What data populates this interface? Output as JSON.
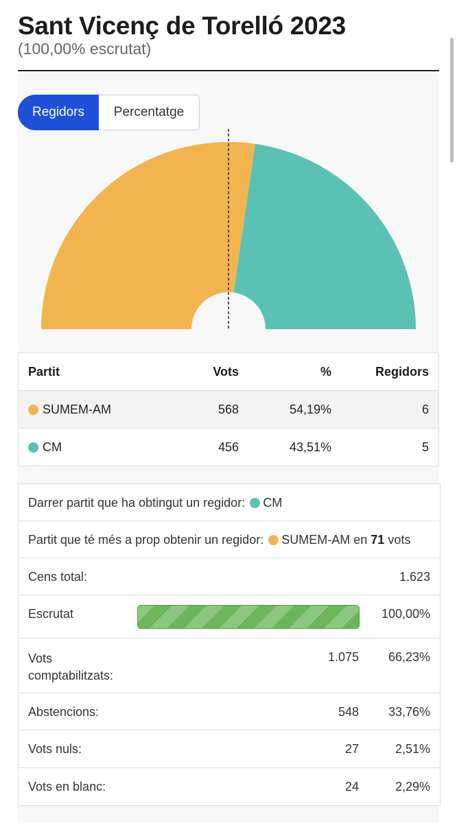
{
  "header": {
    "title": "Sant Vicenç de Torelló 2023",
    "subtitle": "(100,00% escrutat)"
  },
  "toggle": {
    "active_label": "Regidors",
    "inactive_label": "Percentatge"
  },
  "chart_data": {
    "type": "pie",
    "shape": "semicircle",
    "categories": [
      "SUMEM-AM",
      "CM"
    ],
    "values": [
      6,
      5
    ],
    "colors": [
      "#f2b44f",
      "#5bc1b3"
    ],
    "majority_marker": true
  },
  "results": {
    "headers": [
      "Partit",
      "Vots",
      "%",
      "Regidors"
    ],
    "rows": [
      {
        "party": "SUMEM-AM",
        "color": "#f2b44f",
        "votes": "568",
        "pct": "54,19%",
        "seats": "6"
      },
      {
        "party": "CM",
        "color": "#5bc1b3",
        "votes": "456",
        "pct": "43,51%",
        "seats": "5"
      }
    ]
  },
  "info": {
    "last_seat_label": "Darrer partit que ha obtingut un regidor:",
    "last_seat_party": "CM",
    "last_seat_color": "#5bc1b3",
    "closest_label": "Partit que té més a prop obtenir un regidor:",
    "closest_party": "SUMEM-AM",
    "closest_color": "#f2b44f",
    "closest_connector": "en",
    "closest_votes": "71",
    "closest_unit": "vots",
    "census_label": "Cens total:",
    "census_value": "1.623",
    "scrutiny_label": "Escrutat",
    "scrutiny_progress": 1.0,
    "scrutiny_value": "100,00%",
    "counted_label_1": "Vots",
    "counted_label_2": "comptabilitzats:",
    "counted_value": "1.075",
    "counted_pct": "66,23%",
    "abstention_label": "Abstencions:",
    "abstention_value": "548",
    "abstention_pct": "33,76%",
    "null_label": "Vots nuls:",
    "null_value": "27",
    "null_pct": "2,51%",
    "blank_label": "Vots en blanc:",
    "blank_value": "24",
    "blank_pct": "2,29%"
  }
}
